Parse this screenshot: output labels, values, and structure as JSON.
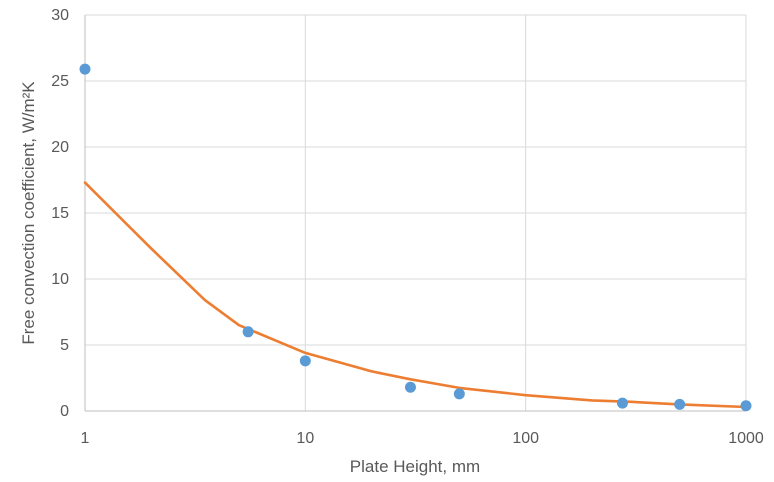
{
  "chart_data": {
    "type": "scatter",
    "title": "",
    "xlabel": "Plate Height, mm",
    "ylabel": "Free convection coefficient, W/m²K",
    "xscale": "log",
    "xlim": [
      1,
      1000
    ],
    "ylim": [
      0,
      30
    ],
    "grid": true,
    "legend": "none",
    "x_ticks": [
      "1",
      "10",
      "100",
      "1000"
    ],
    "y_ticks": [
      "0",
      "5",
      "10",
      "15",
      "20",
      "25",
      "30"
    ],
    "x_tick_values": [
      1,
      10,
      100,
      1000
    ],
    "y_tick_values": [
      0,
      5,
      10,
      15,
      20,
      25,
      30
    ],
    "series": [
      {
        "kind": "scatter",
        "color": "#5B9BD5",
        "x": [
          1,
          5.5,
          10,
          30,
          50,
          275,
          500,
          1000
        ],
        "y": [
          25.9,
          6.0,
          3.8,
          1.8,
          1.3,
          0.6,
          0.5,
          0.4
        ]
      },
      {
        "kind": "line",
        "color": "#ED7D31",
        "x": [
          1,
          2,
          3.5,
          5,
          10,
          20,
          30,
          50,
          100,
          200,
          300,
          500,
          1000
        ],
        "y": [
          17.3,
          12.3,
          8.4,
          6.5,
          4.4,
          3.0,
          2.4,
          1.75,
          1.2,
          0.8,
          0.7,
          0.5,
          0.3
        ]
      }
    ]
  }
}
